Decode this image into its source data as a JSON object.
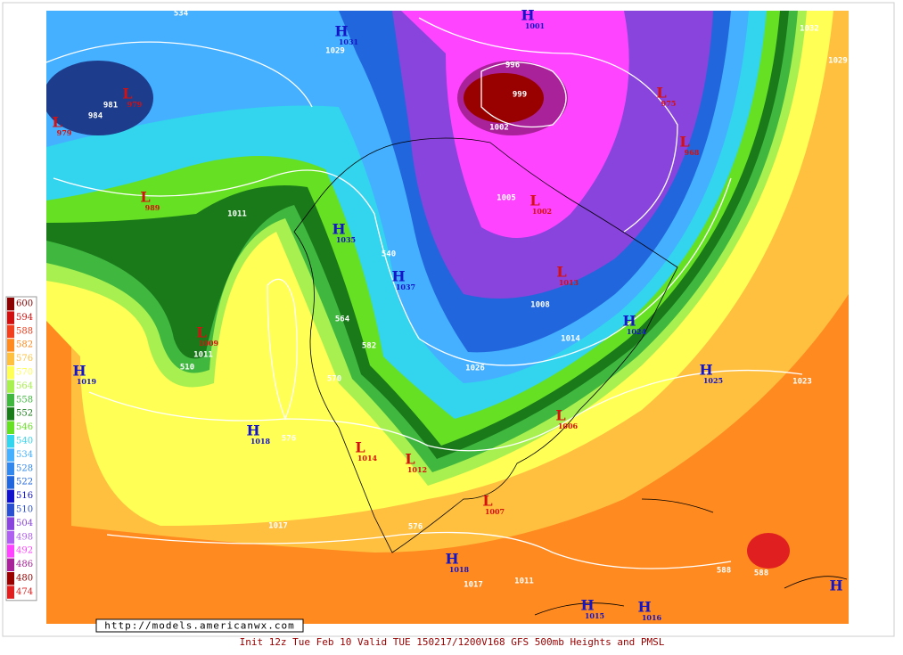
{
  "legend": {
    "labels": [
      600,
      594,
      588,
      582,
      576,
      570,
      564,
      558,
      552,
      546,
      540,
      534,
      528,
      522,
      516,
      510,
      504,
      498,
      492,
      486,
      480,
      474
    ],
    "colors": [
      "#8b0000",
      "#d01010",
      "#f04020",
      "#ff8a20",
      "#ffc040",
      "#ffff55",
      "#a8f050",
      "#40b840",
      "#1a7a1a",
      "#66e022",
      "#33d4ee",
      "#44b0ff",
      "#3388ee",
      "#2266dd",
      "#1111cc",
      "#2a4fd0",
      "#8844dd",
      "#b060f0",
      "#ff44ff",
      "#aa2299",
      "#990000",
      "#e02020"
    ]
  },
  "pressure_centers": [
    {
      "symbol": "H",
      "value": "1031"
    },
    {
      "symbol": "H",
      "value": "1001"
    },
    {
      "symbol": "L",
      "value": "979"
    },
    {
      "symbol": "L",
      "value": "979"
    },
    {
      "symbol": "L",
      "value": "989"
    },
    {
      "symbol": "H",
      "value": "1035"
    },
    {
      "symbol": "H",
      "value": "1037"
    },
    {
      "symbol": "L",
      "value": "1009"
    },
    {
      "symbol": "H",
      "value": "1019"
    },
    {
      "symbol": "H",
      "value": "1018"
    },
    {
      "symbol": "L",
      "value": "1014"
    },
    {
      "symbol": "L",
      "value": "1012"
    },
    {
      "symbol": "L",
      "value": "1007"
    },
    {
      "symbol": "L",
      "value": "1006"
    },
    {
      "symbol": "H",
      "value": "1025"
    },
    {
      "symbol": "H",
      "value": "1024"
    },
    {
      "symbol": "H",
      "value": "1018"
    },
    {
      "symbol": "H",
      "value": "1015"
    },
    {
      "symbol": "H",
      "value": "1016"
    },
    {
      "symbol": "L",
      "value": "1013"
    },
    {
      "symbol": "L",
      "value": "1002"
    },
    {
      "symbol": "L",
      "value": "975"
    },
    {
      "symbol": "L",
      "value": "968"
    },
    {
      "symbol": "H",
      "value": ""
    }
  ],
  "contour_labels": [
    "534",
    "1011",
    "540",
    "564",
    "570",
    "576",
    "576",
    "588",
    "588",
    "1017",
    "1011",
    "1017",
    "1023",
    "1032",
    "1029",
    "984",
    "981",
    "1002",
    "999",
    "996",
    "1005",
    "1008",
    "1026",
    "510",
    "1011",
    "1029",
    "1014",
    "582"
  ],
  "url": "http://models.americanwx.com",
  "caption": "Init 12z Tue Feb 10 Valid TUE 150217/1200V168  GFS 500mb Heights and PMSL"
}
